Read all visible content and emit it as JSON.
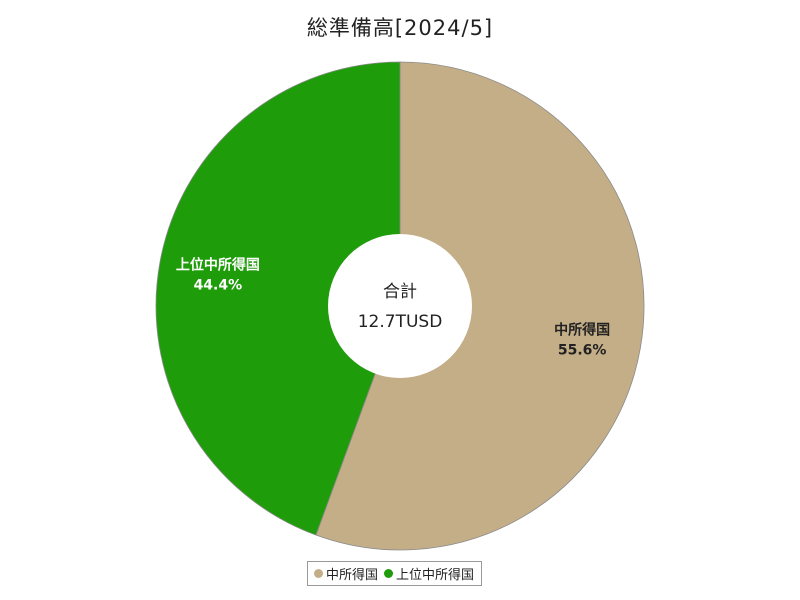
{
  "chart_data": {
    "type": "pie",
    "title": "総準備高[2024/5]",
    "center": {
      "label": "合計",
      "value": "12.7TUSD"
    },
    "series": [
      {
        "name": "中所得国",
        "value": 55.6,
        "percent_label": "55.6%",
        "color": "#c4ae87",
        "label_color": "#222222"
      },
      {
        "name": "上位中所得国",
        "value": 44.4,
        "percent_label": "44.4%",
        "color": "#1e9c0a",
        "label_color": "#ffffff"
      }
    ],
    "legend_position": "bottom"
  }
}
